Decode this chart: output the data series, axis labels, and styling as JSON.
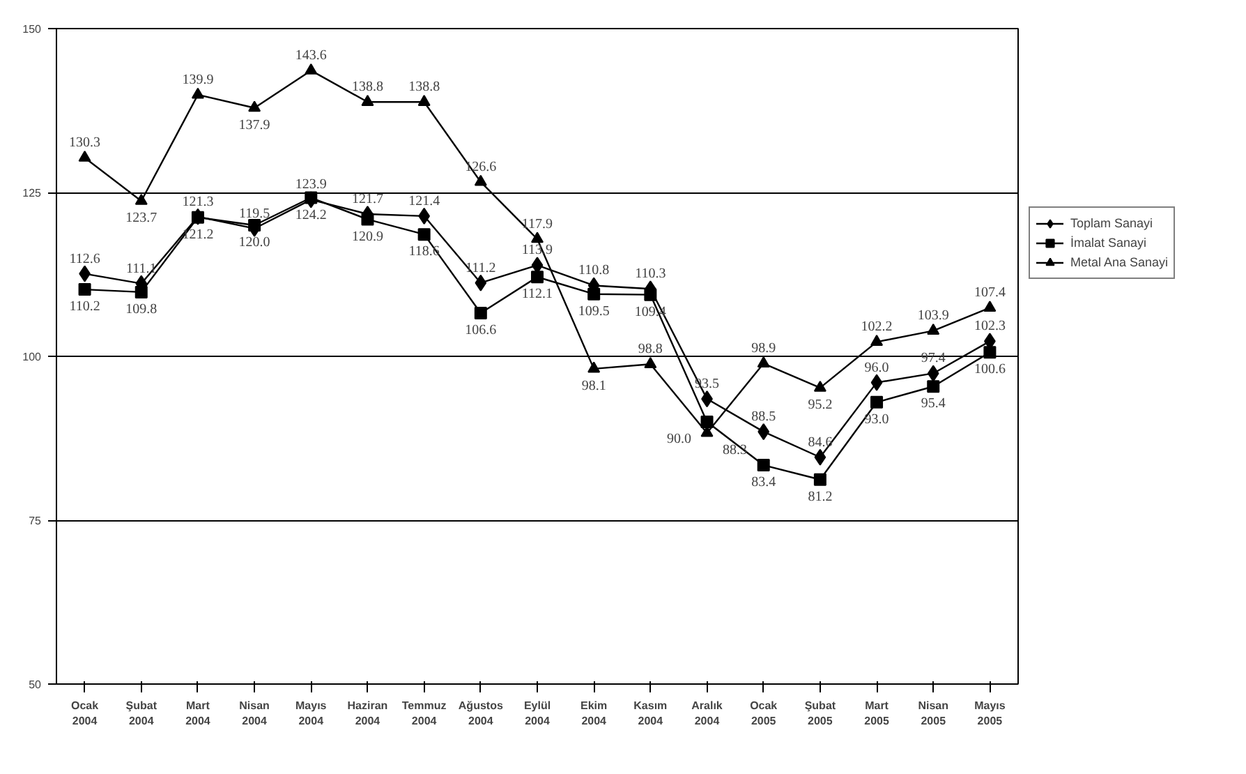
{
  "chart_data": {
    "type": "line",
    "categories": [
      "Ocak 2004",
      "Şubat 2004",
      "Mart 2004",
      "Nisan 2004",
      "Mayıs 2004",
      "Haziran 2004",
      "Temmuz 2004",
      "Ağustos 2004",
      "Eylül 2004",
      "Ekim 2004",
      "Kasım 2004",
      "Aralık 2004",
      "Ocak 2005",
      "Şubat 2005",
      "Mart 2005",
      "Nisan 2005",
      "Mayıs 2005"
    ],
    "series": [
      {
        "name": "Toplam Sanayi",
        "color": "#000000",
        "marker": "diamond",
        "values": [
          112.6,
          111.1,
          121.3,
          119.5,
          123.9,
          121.7,
          121.4,
          111.2,
          113.9,
          110.8,
          110.3,
          93.5,
          88.5,
          84.6,
          96.0,
          97.4,
          102.3
        ],
        "value_labels": [
          "112.6",
          "111.1",
          "121.3",
          "119.5",
          "123.9",
          "121.7",
          "121.4",
          "111.2",
          "113.9",
          "110.8",
          "110.3",
          "93.5",
          "88.5",
          "84.6",
          "96.0",
          "97.4",
          "102.3"
        ]
      },
      {
        "name": "İmalat Sanayi",
        "color": "#000000",
        "marker": "square",
        "values": [
          110.2,
          109.8,
          121.2,
          120.0,
          124.2,
          120.9,
          118.6,
          106.6,
          112.1,
          109.5,
          109.4,
          90.0,
          83.4,
          81.2,
          93.0,
          95.4,
          100.6
        ],
        "value_labels": [
          "110.2",
          "109.8",
          "121.2",
          "120.0",
          "124.2",
          "120.9",
          "118.6",
          "106.6",
          "112.1",
          "109.5",
          "109.4",
          "90.0",
          "83.4",
          "81.2",
          "93.0",
          "95.4",
          "100.6"
        ]
      },
      {
        "name": "Metal Ana Sanayi",
        "color": "#000000",
        "marker": "triangle",
        "values": [
          130.3,
          123.7,
          139.9,
          137.9,
          143.6,
          138.8,
          138.8,
          126.6,
          117.9,
          98.1,
          98.8,
          88.3,
          98.9,
          95.2,
          102.2,
          103.9,
          107.4
        ],
        "value_labels": [
          "130.3",
          "123.7",
          "139.9",
          "137.9",
          "143.6",
          "138.8",
          "138.8",
          "126.6",
          "117.9",
          "98.1",
          "98.8",
          "88.3",
          "98.9",
          "95.2",
          "102.2",
          "103.9",
          "107.4"
        ]
      }
    ],
    "ylim": [
      50,
      150
    ],
    "yticks": [
      50,
      75,
      100,
      125,
      150
    ],
    "grid": "y",
    "legend": "right",
    "line_style": "solid"
  }
}
